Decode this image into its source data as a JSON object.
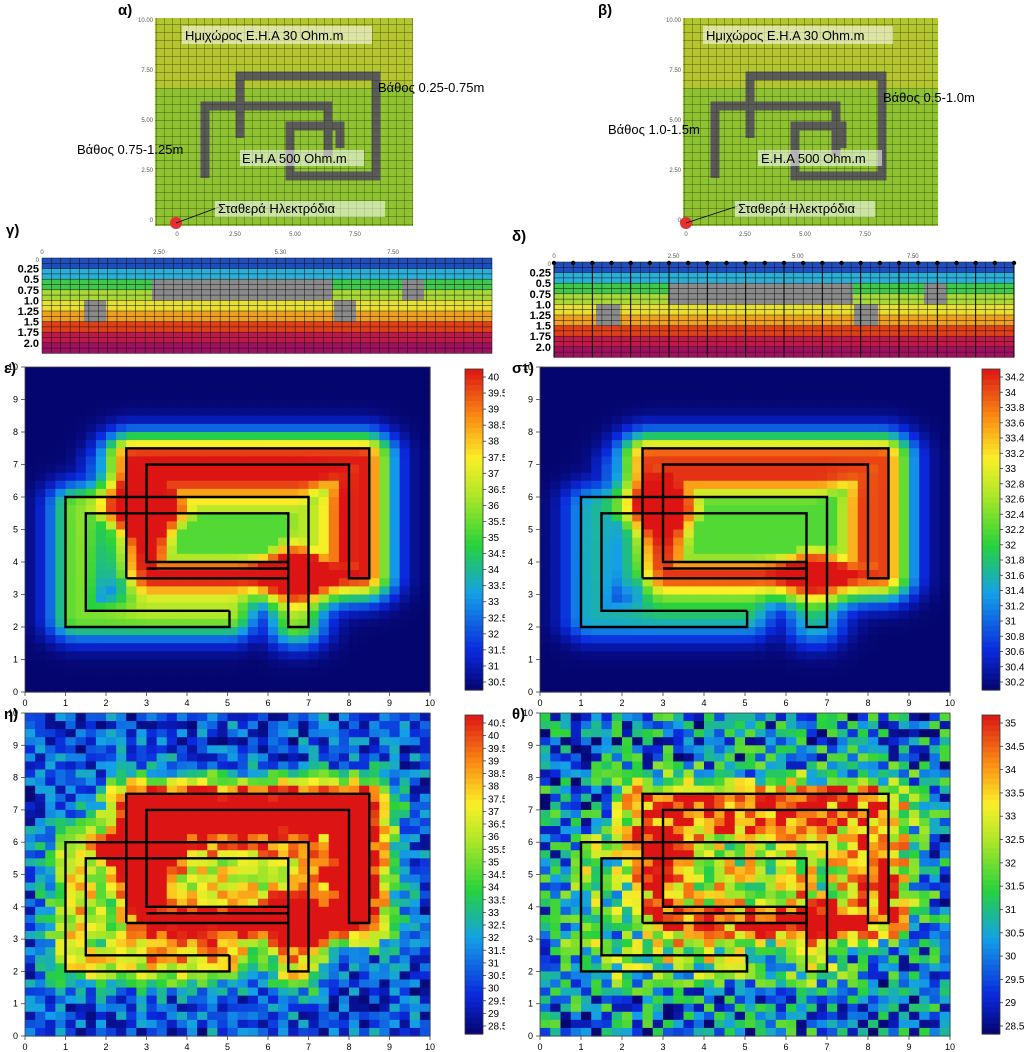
{
  "labels": {
    "a": "α)",
    "b": "β)",
    "g": "γ)",
    "d": "δ)",
    "e": "ε)",
    "st": "στ)",
    "h": "η)",
    "th": "θ)"
  },
  "plan_a": {
    "top": "Ημιχώρος Ε.Η.Α 30 Ohm.m",
    "depth1": "Βάθος 0.25-0.75m",
    "depth2": "Βάθος 0.75-1.25m",
    "inner": "Ε.Η.Α 500 Ohm.m",
    "electrodes": "Σταθερά Ηλεκτρόδια",
    "yticks": [
      "10.00",
      "7.50",
      "5.00",
      "2.50",
      "0"
    ],
    "xticks": [
      "0",
      "2.50",
      "5.00",
      "7.50"
    ]
  },
  "plan_b": {
    "top": "Ημιχώρος Ε.Η.Α 30 Ohm.m",
    "depth1": "Βάθος 0.5-1.0m",
    "depth2": "Βάθος 1.0-1.5m",
    "inner": "Ε.Η.Α 500 Ohm.m",
    "electrodes": "Σταθερά Ηλεκτρόδια",
    "yticks": [
      "10.00",
      "7.50",
      "5.00",
      "2.50",
      "0"
    ],
    "xticks": [
      "0",
      "2.50",
      "5.00",
      "7.50"
    ]
  },
  "section_g": {
    "xticks": [
      "0",
      "2.50",
      "5.30",
      "7.50"
    ],
    "depths": [
      "0.25",
      "0.5",
      "0.75",
      "1.0",
      "1.25",
      "1.5",
      "1.75",
      "2.0"
    ]
  },
  "section_d": {
    "xticks": [
      "0",
      "2.50",
      "5.00",
      "7.50"
    ],
    "depths": [
      "0.25",
      "0.5",
      "0.75",
      "1.0",
      "1.25",
      "1.5",
      "1.75",
      "2.0"
    ]
  },
  "maps": {
    "axis_ticks": [
      "0",
      "1",
      "2",
      "3",
      "4",
      "5",
      "6",
      "7",
      "8",
      "9",
      "10"
    ],
    "e": {
      "colorbar": [
        "40",
        "39.5",
        "39",
        "38.5",
        "38",
        "37.5",
        "37",
        "36.5",
        "36",
        "35.5",
        "35",
        "34.5",
        "34",
        "33.5",
        "33",
        "32.5",
        "32",
        "31.5",
        "31",
        "30.5"
      ]
    },
    "st": {
      "colorbar": [
        "34.2",
        "34",
        "33.8",
        "33.6",
        "33.4",
        "33.2",
        "33",
        "32.8",
        "32.6",
        "32.4",
        "32.2",
        "32",
        "31.8",
        "31.6",
        "31.4",
        "31.2",
        "31",
        "30.8",
        "30.6",
        "30.4",
        "30.2"
      ]
    },
    "h": {
      "colorbar": [
        "40.5",
        "40",
        "39.5",
        "39",
        "38.5",
        "38",
        "37.5",
        "37",
        "36.5",
        "36",
        "35.5",
        "35",
        "34.5",
        "34",
        "33.5",
        "33",
        "32.5",
        "32",
        "31.5",
        "31",
        "30.5",
        "30",
        "29.5",
        "29",
        "28.5"
      ]
    },
    "th": {
      "colorbar": [
        "35",
        "34.5",
        "34",
        "33.5",
        "33",
        "32.5",
        "32",
        "31.5",
        "31",
        "30.5",
        "30",
        "29.5",
        "29",
        "28.5"
      ]
    }
  },
  "colors": {
    "plan_fill": "#8fc331",
    "plan_top": "#c9c92a",
    "target": "#5a5a5a",
    "electrode": "#e53030"
  }
}
